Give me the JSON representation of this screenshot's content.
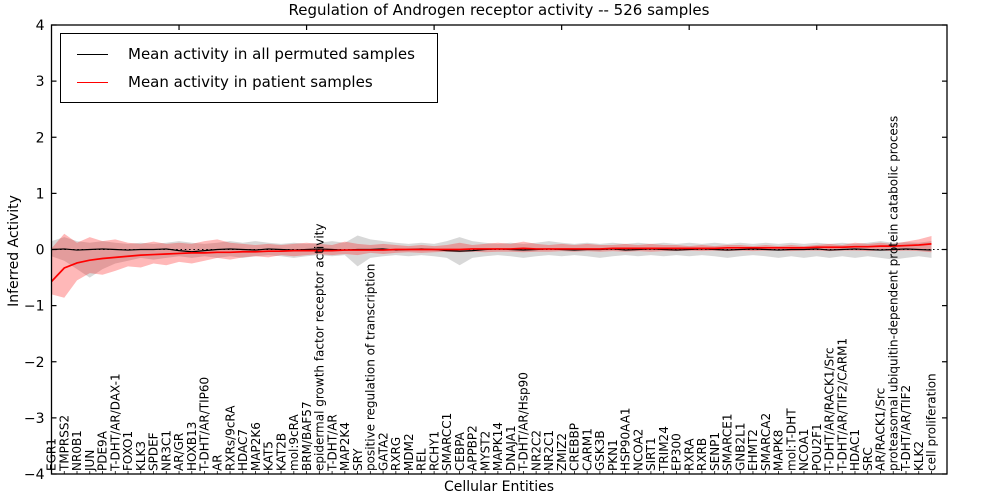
{
  "chart_data": {
    "type": "line",
    "title": "Regulation of Androgen receptor activity -- 526 samples",
    "xlabel": "Cellular Entities",
    "ylabel": "Inferred Activity",
    "ylim": [
      -4,
      4
    ],
    "yticks": [
      4,
      3,
      2,
      1,
      0,
      -1,
      -2,
      -3,
      -4
    ],
    "grid": false,
    "legend_position": "upper left",
    "zero_reference_line": true,
    "colors": {
      "permuted_line": "#000000",
      "patient_line": "#ff0000",
      "permuted_band": "rgba(125,125,125,0.30)",
      "patient_band": "rgba(255,0,0,0.28)"
    },
    "categories": [
      "EGR1",
      "TMPRSS2",
      "NR0B1",
      "JUN",
      "PDE9A",
      "T-DHT/AR/DAX-1",
      "FOXO1",
      "KLK3",
      "SPDEF",
      "NR3C1",
      "AR/GR",
      "HOXB13",
      "T-DHT/AR/TIP60",
      "AR",
      "RXRs/9cRA",
      "HDAC7",
      "MAP2K6",
      "KAT5",
      "KAT2B",
      "mol:9cRA",
      "BRM/BAF57",
      "epidermal growth factor receptor activity",
      "T-DHT/AR",
      "MAP2K4",
      "SRY",
      "positive regulation of transcription",
      "GATA2",
      "RXRG",
      "MDM2",
      "REL",
      "RCHY1",
      "SMARCC1",
      "CEBPA",
      "APPBP2",
      "MYST2",
      "MAPK14",
      "DNAJA1",
      "T-DHT/AR/Hsp90",
      "NR2C2",
      "NR2C1",
      "ZMIZ2",
      "CREBBP",
      "CARM1",
      "GSK3B",
      "PKN1",
      "HSP90AA1",
      "NCOA2",
      "SIRT1",
      "TRIM24",
      "EP300",
      "RXRA",
      "RXRB",
      "SENP1",
      "SMARCE1",
      "GNB2L1",
      "EHMT2",
      "SMARCA2",
      "MAPK8",
      "mol:T-DHT",
      "NCOA1",
      "POU2F1",
      "T-DHT/AR/RACK1/Src",
      "T-DHT/AR/TIF2/CARM1",
      "HDAC1",
      "SRC",
      "AR/RACK1/Src",
      "proteasomal ubiquitin-dependent protein catabolic process",
      "T-DHT/AR/TIF2",
      "KLK2",
      "cell proliferation"
    ],
    "series": [
      {
        "name": "Mean activity in all permuted samples",
        "color": "#000000",
        "values": [
          0.0,
          0.01,
          -0.01,
          0.0,
          0.01,
          0.0,
          -0.01,
          0.0,
          0.0,
          0.01,
          -0.02,
          -0.04,
          -0.02,
          0.0,
          0.01,
          0.0,
          -0.01,
          0.01,
          0.0,
          -0.01,
          0.0,
          0.01,
          0.0,
          -0.01,
          0.0,
          0.0,
          0.01,
          -0.01,
          0.0,
          0.01,
          0.0,
          -0.02,
          -0.03,
          -0.02,
          0.0,
          0.01,
          0.0,
          -0.01,
          0.0,
          0.01,
          0.0,
          -0.01,
          0.0,
          0.0,
          0.01,
          -0.01,
          0.0,
          0.01,
          0.0,
          -0.01,
          0.0,
          0.01,
          0.0,
          -0.01,
          0.0,
          0.01,
          0.0,
          -0.01,
          0.0,
          0.0,
          0.01,
          -0.01,
          0.0,
          0.01,
          0.0,
          -0.01,
          0.0,
          0.01,
          0.0,
          -0.01
        ],
        "band_upper": [
          0.15,
          0.22,
          0.15,
          0.12,
          0.15,
          0.12,
          0.1,
          0.12,
          0.1,
          0.12,
          0.15,
          0.12,
          0.1,
          0.12,
          0.15,
          0.12,
          0.15,
          0.12,
          0.1,
          0.12,
          0.1,
          0.12,
          0.15,
          0.12,
          0.25,
          0.18,
          0.15,
          0.12,
          0.1,
          0.12,
          0.1,
          0.15,
          0.22,
          0.15,
          0.12,
          0.1,
          0.12,
          0.1,
          0.12,
          0.15,
          0.12,
          0.1,
          0.12,
          0.1,
          0.12,
          0.1,
          0.12,
          0.1,
          0.12,
          0.1,
          0.12,
          0.1,
          0.12,
          0.1,
          0.12,
          0.1,
          0.12,
          0.1,
          0.12,
          0.1,
          0.12,
          0.1,
          0.12,
          0.1,
          0.12,
          0.15,
          0.12,
          0.13,
          0.12,
          0.15
        ],
        "band_lower": [
          -0.12,
          -0.2,
          -0.35,
          -0.5,
          -0.35,
          -0.25,
          -0.2,
          -0.15,
          -0.18,
          -0.15,
          -0.12,
          -0.15,
          -0.12,
          -0.15,
          -0.12,
          -0.15,
          -0.12,
          -0.1,
          -0.12,
          -0.15,
          -0.12,
          -0.1,
          -0.12,
          -0.1,
          -0.3,
          -0.15,
          -0.12,
          -0.1,
          -0.12,
          -0.1,
          -0.12,
          -0.15,
          -0.28,
          -0.15,
          -0.12,
          -0.1,
          -0.12,
          -0.15,
          -0.12,
          -0.1,
          -0.12,
          -0.1,
          -0.12,
          -0.15,
          -0.12,
          -0.1,
          -0.12,
          -0.1,
          -0.12,
          -0.1,
          -0.12,
          -0.1,
          -0.12,
          -0.15,
          -0.12,
          -0.1,
          -0.12,
          -0.15,
          -0.12,
          -0.15,
          -0.12,
          -0.15,
          -0.12,
          -0.15,
          -0.12,
          -0.15,
          -0.18,
          -0.15,
          -0.12,
          -0.15
        ]
      },
      {
        "name": "Mean activity in patient samples",
        "color": "#ff0000",
        "values": [
          -0.57,
          -0.33,
          -0.24,
          -0.19,
          -0.16,
          -0.14,
          -0.12,
          -0.1,
          -0.09,
          -0.08,
          -0.07,
          -0.06,
          -0.06,
          -0.05,
          -0.05,
          -0.04,
          -0.04,
          -0.03,
          -0.03,
          -0.02,
          -0.02,
          -0.02,
          -0.02,
          -0.01,
          -0.01,
          -0.01,
          -0.01,
          0.0,
          0.0,
          0.0,
          0.0,
          0.0,
          0.0,
          0.01,
          0.01,
          0.01,
          0.01,
          0.02,
          0.01,
          0.01,
          0.01,
          0.01,
          0.01,
          0.01,
          0.02,
          0.02,
          0.02,
          0.02,
          0.02,
          0.02,
          0.02,
          0.02,
          0.02,
          0.03,
          0.03,
          0.03,
          0.03,
          0.03,
          0.03,
          0.03,
          0.04,
          0.04,
          0.04,
          0.05,
          0.05,
          0.06,
          0.06,
          0.07,
          0.08,
          0.1
        ],
        "band_upper": [
          0.02,
          0.28,
          0.12,
          0.22,
          0.15,
          0.18,
          0.12,
          0.1,
          0.14,
          0.1,
          0.12,
          0.1,
          0.15,
          0.18,
          0.12,
          0.1,
          0.08,
          0.1,
          0.08,
          0.1,
          0.12,
          0.1,
          0.08,
          0.14,
          0.1,
          0.08,
          0.1,
          0.08,
          0.06,
          0.08,
          0.06,
          0.08,
          0.12,
          0.08,
          0.1,
          0.12,
          0.1,
          0.14,
          0.1,
          0.08,
          0.1,
          0.08,
          0.1,
          0.08,
          0.08,
          0.1,
          0.08,
          0.1,
          0.08,
          0.08,
          0.06,
          0.08,
          0.06,
          0.08,
          0.08,
          0.06,
          0.08,
          0.06,
          0.08,
          0.06,
          0.08,
          0.1,
          0.08,
          0.12,
          0.1,
          0.12,
          0.1,
          0.14,
          0.18,
          0.24
        ],
        "band_lower": [
          -0.8,
          -0.86,
          -0.55,
          -0.42,
          -0.45,
          -0.38,
          -0.3,
          -0.32,
          -0.25,
          -0.28,
          -0.22,
          -0.25,
          -0.2,
          -0.15,
          -0.18,
          -0.14,
          -0.12,
          -0.14,
          -0.1,
          -0.12,
          -0.1,
          -0.08,
          -0.1,
          -0.08,
          -0.1,
          -0.06,
          -0.08,
          -0.06,
          -0.05,
          -0.06,
          -0.05,
          -0.04,
          -0.05,
          -0.04,
          -0.05,
          -0.04,
          -0.04,
          -0.05,
          -0.04,
          -0.04,
          -0.03,
          -0.04,
          -0.03,
          -0.04,
          -0.03,
          -0.04,
          -0.03,
          -0.04,
          -0.03,
          -0.03,
          -0.02,
          -0.03,
          -0.02,
          -0.03,
          -0.02,
          -0.03,
          -0.02,
          -0.02,
          -0.03,
          -0.02,
          -0.02,
          -0.03,
          -0.02,
          -0.02,
          -0.03,
          -0.02,
          -0.03,
          -0.02,
          -0.03,
          -0.05
        ]
      }
    ]
  }
}
